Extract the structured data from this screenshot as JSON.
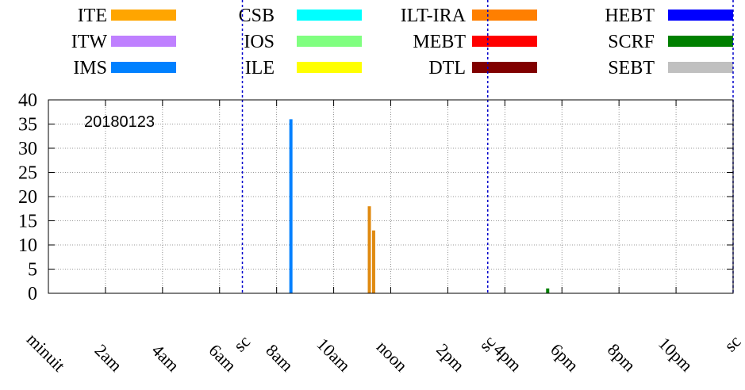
{
  "chart_data": {
    "type": "bar",
    "annotation": "20180123",
    "x_ticks": [
      "minuit",
      "2am",
      "4am",
      "6am",
      "8am",
      "10am",
      "noon",
      "2pm",
      "4pm",
      "6pm",
      "8pm",
      "10pm"
    ],
    "y_ticks": [
      "0",
      "5",
      "10",
      "15",
      "20",
      "25",
      "30",
      "35",
      "40"
    ],
    "ylim": [
      0,
      40
    ],
    "xlim_hours": [
      0,
      24
    ],
    "grid": true,
    "legend_position": "top",
    "legend": [
      {
        "name": "ITE",
        "color": "#ffa500"
      },
      {
        "name": "CSB",
        "color": "#00ffff"
      },
      {
        "name": "ILT-IRA",
        "color": "#ff7f00"
      },
      {
        "name": "HEBT",
        "color": "#0000ff"
      },
      {
        "name": "ITW",
        "color": "#bf80ff"
      },
      {
        "name": "IOS",
        "color": "#80ff80"
      },
      {
        "name": "MEBT",
        "color": "#ff0000"
      },
      {
        "name": "SCRF",
        "color": "#008000"
      },
      {
        "name": "IMS",
        "color": "#0080ff"
      },
      {
        "name": "ILE",
        "color": "#ffff00"
      },
      {
        "name": "DTL",
        "color": "#800000"
      },
      {
        "name": "SEBT",
        "color": "#c0c0c0"
      }
    ],
    "markers": [
      {
        "label": "sc",
        "hour": 6.8
      },
      {
        "label": "sc",
        "hour": 15.4
      },
      {
        "label": "sc",
        "hour": 24.0
      }
    ],
    "bars": [
      {
        "series": "IMS",
        "hour": 8.5,
        "value": 36,
        "color": "#0080ff"
      },
      {
        "series": "ILT-IRA",
        "hour": 11.25,
        "value": 18,
        "color": "#e08a10"
      },
      {
        "series": "ILT-IRA",
        "hour": 11.4,
        "value": 13,
        "color": "#e08a10"
      },
      {
        "series": "SCRF",
        "hour": 17.5,
        "value": 1,
        "color": "#008000"
      }
    ]
  }
}
